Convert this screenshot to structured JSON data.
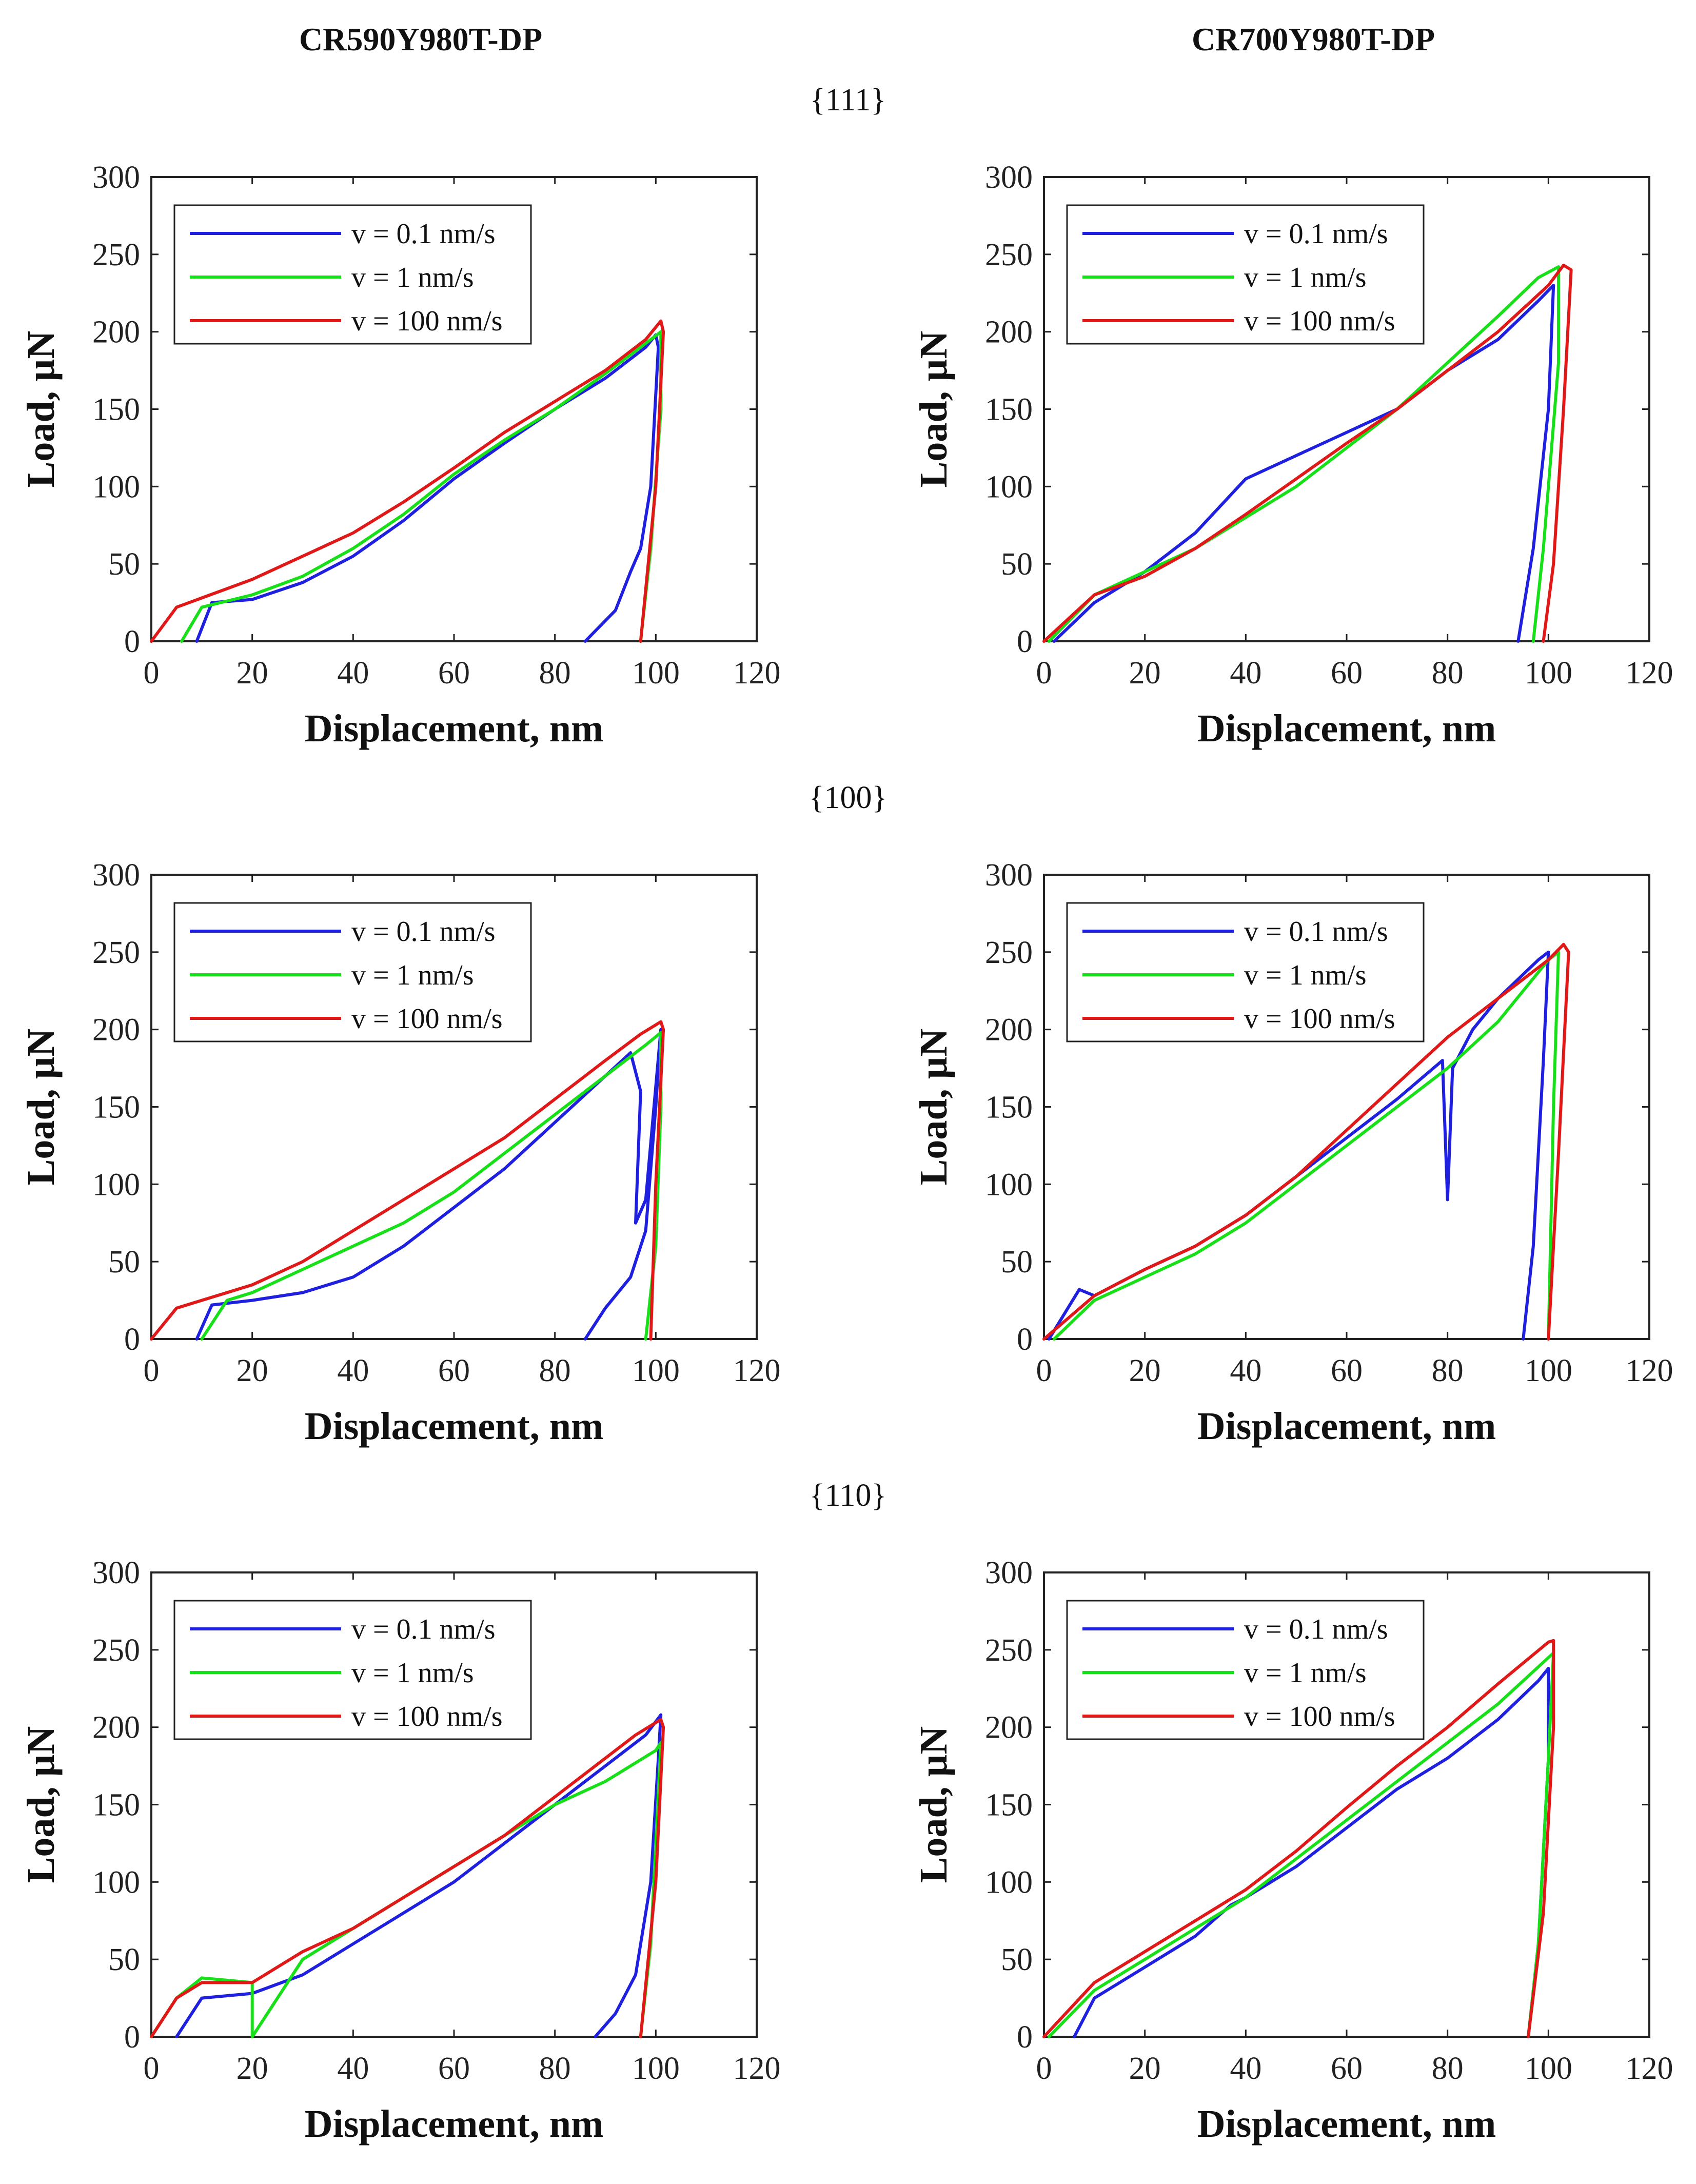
{
  "column_titles": [
    "CR590Y980T-DP",
    "CR700Y980T-DP"
  ],
  "row_titles": [
    "{111}",
    "{100}",
    "{110}"
  ],
  "colors": {
    "blue": "#1f1fe0",
    "green": "#18e018",
    "red": "#e01818"
  },
  "chart_data": [
    {
      "type": "line",
      "material": "CR590Y980T-DP",
      "plane": "{111}",
      "xlabel": "Displacement, nm",
      "ylabel": "Load, µN",
      "xlim": [
        0,
        120
      ],
      "ylim": [
        0,
        300
      ],
      "xticks": [
        0,
        20,
        40,
        60,
        80,
        100,
        120
      ],
      "yticks": [
        0,
        50,
        100,
        150,
        200,
        250,
        300
      ],
      "legend": "top-left",
      "series": [
        {
          "name": "v = 0.1 nm/s",
          "color": "blue",
          "x": [
            9,
            12,
            20,
            30,
            40,
            50,
            60,
            70,
            80,
            90,
            98,
            100,
            100.5,
            99,
            97,
            95,
            92,
            86
          ],
          "y": [
            0,
            25,
            27,
            38,
            55,
            78,
            105,
            128,
            150,
            170,
            190,
            198,
            190,
            100,
            60,
            45,
            20,
            0
          ]
        },
        {
          "name": "v = 1 nm/s",
          "color": "green",
          "x": [
            6,
            10,
            20,
            30,
            40,
            50,
            60,
            70,
            80,
            90,
            99,
            101,
            101,
            99,
            97
          ],
          "y": [
            0,
            22,
            30,
            42,
            60,
            82,
            108,
            130,
            150,
            173,
            195,
            200,
            150,
            60,
            0
          ]
        },
        {
          "name": "v = 100 nm/s",
          "color": "red",
          "x": [
            0,
            5,
            10,
            20,
            30,
            40,
            50,
            60,
            70,
            80,
            90,
            98,
            101,
            101.5,
            100,
            97
          ],
          "y": [
            0,
            22,
            28,
            40,
            55,
            70,
            90,
            112,
            135,
            155,
            175,
            195,
            207,
            200,
            100,
            0
          ]
        }
      ]
    },
    {
      "type": "line",
      "material": "CR700Y980T-DP",
      "plane": "{111}",
      "xlabel": "Displacement, nm",
      "ylabel": "Load, µN",
      "xlim": [
        0,
        120
      ],
      "ylim": [
        0,
        300
      ],
      "xticks": [
        0,
        20,
        40,
        60,
        80,
        100,
        120
      ],
      "yticks": [
        0,
        50,
        100,
        150,
        200,
        250,
        300
      ],
      "legend": "top-left",
      "series": [
        {
          "name": "v = 0.1 nm/s",
          "color": "blue",
          "x": [
            2,
            10,
            20,
            30,
            40,
            50,
            60,
            70,
            80,
            90,
            98,
            101,
            100,
            97,
            94
          ],
          "y": [
            0,
            25,
            45,
            70,
            105,
            120,
            135,
            150,
            175,
            195,
            220,
            230,
            150,
            60,
            0
          ]
        },
        {
          "name": "v = 1 nm/s",
          "color": "green",
          "x": [
            1,
            10,
            20,
            30,
            40,
            50,
            60,
            70,
            80,
            90,
            98,
            102,
            102,
            99,
            97
          ],
          "y": [
            0,
            30,
            45,
            60,
            80,
            100,
            125,
            150,
            180,
            210,
            235,
            242,
            180,
            60,
            0
          ]
        },
        {
          "name": "v = 100 nm/s",
          "color": "red",
          "x": [
            0,
            10,
            20,
            30,
            40,
            50,
            60,
            70,
            80,
            90,
            100,
            103,
            104.5,
            103,
            101,
            99
          ],
          "y": [
            0,
            30,
            42,
            60,
            82,
            105,
            128,
            150,
            175,
            200,
            230,
            243,
            240,
            150,
            50,
            0
          ]
        }
      ]
    },
    {
      "type": "line",
      "material": "CR590Y980T-DP",
      "plane": "{100}",
      "xlabel": "Displacement, nm",
      "ylabel": "Load, µN",
      "xlim": [
        0,
        120
      ],
      "ylim": [
        0,
        300
      ],
      "xticks": [
        0,
        20,
        40,
        60,
        80,
        100,
        120
      ],
      "yticks": [
        0,
        50,
        100,
        150,
        200,
        250,
        300
      ],
      "legend": "top-left",
      "series": [
        {
          "name": "v = 0.1 nm/s",
          "color": "blue",
          "x": [
            9,
            12,
            20,
            30,
            40,
            50,
            60,
            70,
            80,
            90,
            95,
            97,
            96,
            98,
            101,
            100,
            98,
            95,
            90,
            86
          ],
          "y": [
            0,
            22,
            25,
            30,
            40,
            60,
            85,
            110,
            140,
            170,
            185,
            160,
            75,
            90,
            200,
            150,
            70,
            40,
            20,
            0
          ]
        },
        {
          "name": "v = 1 nm/s",
          "color": "green",
          "x": [
            10,
            15,
            20,
            30,
            40,
            50,
            60,
            70,
            80,
            90,
            98,
            101,
            101,
            100,
            98
          ],
          "y": [
            0,
            25,
            30,
            45,
            60,
            75,
            95,
            120,
            145,
            170,
            190,
            198,
            150,
            60,
            0
          ]
        },
        {
          "name": "v = 100 nm/s",
          "color": "red",
          "x": [
            0,
            5,
            10,
            20,
            30,
            40,
            50,
            60,
            70,
            80,
            90,
            97,
            101,
            101.5,
            100,
            99
          ],
          "y": [
            0,
            20,
            25,
            35,
            50,
            70,
            90,
            110,
            130,
            155,
            180,
            197,
            205,
            200,
            100,
            0
          ]
        }
      ]
    },
    {
      "type": "line",
      "material": "CR700Y980T-DP",
      "plane": "{100}",
      "xlabel": "Displacement, nm",
      "ylabel": "Load, µN",
      "xlim": [
        0,
        120
      ],
      "ylim": [
        0,
        300
      ],
      "xticks": [
        0,
        20,
        40,
        60,
        80,
        100,
        120
      ],
      "yticks": [
        0,
        50,
        100,
        150,
        200,
        250,
        300
      ],
      "legend": "top-left",
      "series": [
        {
          "name": "v = 0.1 nm/s",
          "color": "blue",
          "x": [
            1,
            7,
            10,
            20,
            30,
            40,
            50,
            60,
            70,
            79,
            80,
            81,
            85,
            90,
            98,
            100,
            99,
            97,
            95
          ],
          "y": [
            0,
            32,
            28,
            45,
            60,
            80,
            105,
            130,
            155,
            180,
            90,
            175,
            200,
            220,
            245,
            250,
            180,
            60,
            0
          ]
        },
        {
          "name": "v = 1 nm/s",
          "color": "green",
          "x": [
            2,
            10,
            20,
            30,
            40,
            50,
            60,
            70,
            80,
            90,
            100,
            102,
            101,
            100
          ],
          "y": [
            0,
            25,
            40,
            55,
            75,
            100,
            125,
            150,
            175,
            205,
            245,
            250,
            150,
            0
          ]
        },
        {
          "name": "v = 100 nm/s",
          "color": "red",
          "x": [
            0,
            10,
            20,
            30,
            40,
            50,
            60,
            70,
            80,
            90,
            100,
            103,
            104,
            102,
            100
          ],
          "y": [
            0,
            28,
            45,
            60,
            80,
            105,
            135,
            165,
            195,
            220,
            245,
            255,
            250,
            120,
            0
          ]
        }
      ]
    },
    {
      "type": "line",
      "material": "CR590Y980T-DP",
      "plane": "{110}",
      "xlabel": "Displacement, nm",
      "ylabel": "Load, µN",
      "xlim": [
        0,
        120
      ],
      "ylim": [
        0,
        300
      ],
      "xticks": [
        0,
        20,
        40,
        60,
        80,
        100,
        120
      ],
      "yticks": [
        0,
        50,
        100,
        150,
        200,
        250,
        300
      ],
      "legend": "top-left",
      "series": [
        {
          "name": "v = 0.1 nm/s",
          "color": "blue",
          "x": [
            5,
            10,
            20,
            30,
            40,
            50,
            60,
            70,
            80,
            90,
            98,
            101,
            100.5,
            99,
            96,
            92,
            88
          ],
          "y": [
            0,
            25,
            28,
            40,
            60,
            80,
            100,
            125,
            150,
            175,
            195,
            208,
            180,
            100,
            40,
            15,
            0
          ]
        },
        {
          "name": "v = 1 nm/s",
          "color": "green",
          "x": [
            0,
            5,
            10,
            20,
            20,
            30,
            40,
            50,
            60,
            70,
            80,
            90,
            100,
            101,
            99,
            97
          ],
          "y": [
            0,
            25,
            38,
            35,
            0,
            50,
            70,
            90,
            110,
            130,
            150,
            165,
            185,
            190,
            60,
            0
          ]
        },
        {
          "name": "v = 100 nm/s",
          "color": "red",
          "x": [
            0,
            5,
            10,
            20,
            30,
            40,
            50,
            60,
            70,
            80,
            90,
            96,
            101,
            101.5,
            100,
            97
          ],
          "y": [
            0,
            25,
            35,
            35,
            55,
            70,
            90,
            110,
            130,
            155,
            180,
            195,
            205,
            200,
            100,
            0
          ]
        }
      ]
    },
    {
      "type": "line",
      "material": "CR700Y980T-DP",
      "plane": "{110}",
      "xlabel": "Displacement, nm",
      "ylabel": "Load, µN",
      "xlim": [
        0,
        120
      ],
      "ylim": [
        0,
        300
      ],
      "xticks": [
        0,
        20,
        40,
        60,
        80,
        100,
        120
      ],
      "yticks": [
        0,
        50,
        100,
        150,
        200,
        250,
        300
      ],
      "legend": "top-left",
      "series": [
        {
          "name": "v = 0.1 nm/s",
          "color": "blue",
          "x": [
            6,
            10,
            20,
            30,
            37,
            40,
            50,
            60,
            70,
            80,
            90,
            98,
            100,
            100,
            98,
            96
          ],
          "y": [
            0,
            25,
            45,
            65,
            85,
            90,
            110,
            135,
            160,
            180,
            205,
            230,
            238,
            180,
            60,
            0
          ]
        },
        {
          "name": "v = 1 nm/s",
          "color": "green",
          "x": [
            1,
            10,
            20,
            30,
            40,
            50,
            60,
            70,
            80,
            90,
            100,
            101,
            100,
            98,
            96
          ],
          "y": [
            0,
            30,
            50,
            70,
            90,
            115,
            140,
            165,
            190,
            215,
            245,
            248,
            180,
            60,
            0
          ]
        },
        {
          "name": "v = 100 nm/s",
          "color": "red",
          "x": [
            0,
            10,
            20,
            30,
            40,
            50,
            60,
            70,
            80,
            90,
            100,
            101,
            101,
            99,
            96
          ],
          "y": [
            0,
            35,
            55,
            75,
            95,
            120,
            148,
            175,
            200,
            228,
            255,
            256,
            200,
            80,
            0
          ]
        }
      ]
    }
  ]
}
